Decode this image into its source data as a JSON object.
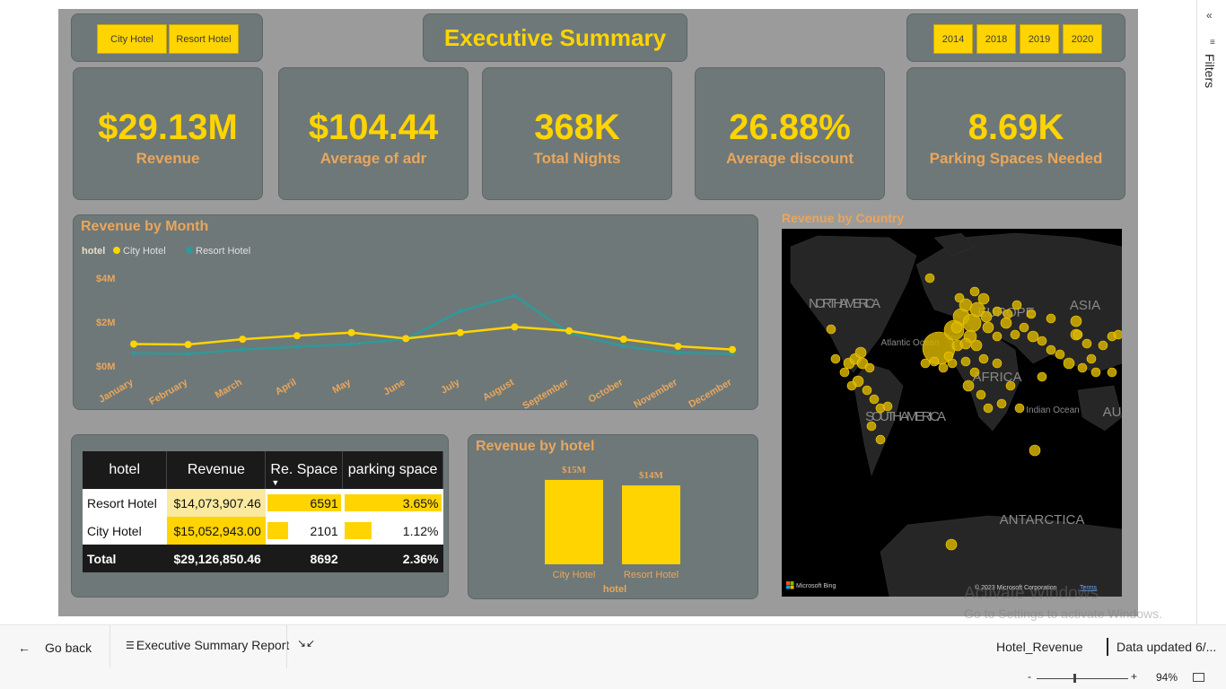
{
  "hotel_slicer": [
    "City Hotel",
    "Resort Hotel"
  ],
  "report_title": "Executive Summary",
  "year_slicer": [
    "2014",
    "2018",
    "2019",
    "2020"
  ],
  "kpis": [
    {
      "value": "$29.13M",
      "label": "Revenue"
    },
    {
      "value": "$104.44",
      "label": "Average of adr"
    },
    {
      "value": "368K",
      "label": "Total Nights"
    },
    {
      "value": "26.88%",
      "label": "Average discount"
    },
    {
      "value": "8.69K",
      "label": "Parking Spaces Needed"
    }
  ],
  "line_chart": {
    "title": "Revenue by Month",
    "legend_title": "hotel",
    "chart_data": {
      "type": "line",
      "title": "Revenue by Month",
      "categories": [
        "January",
        "February",
        "March",
        "April",
        "May",
        "June",
        "July",
        "August",
        "September",
        "October",
        "November",
        "December"
      ],
      "y_ticks": [
        "$0M",
        "$2M",
        "$4M"
      ],
      "ylim": [
        0,
        4
      ],
      "series": [
        {
          "name": "City Hotel",
          "color": "#ffd400",
          "values": [
            1.0,
            0.98,
            1.22,
            1.38,
            1.52,
            1.25,
            1.52,
            1.78,
            1.6,
            1.22,
            0.9,
            0.75
          ]
        },
        {
          "name": "Resort Hotel",
          "color": "#2e9a9a",
          "values": [
            0.58,
            0.55,
            0.75,
            0.88,
            1.0,
            1.22,
            2.5,
            3.2,
            1.5,
            0.9,
            0.6,
            0.55
          ]
        }
      ]
    }
  },
  "map": {
    "title": "Revenue by Country",
    "labels": [
      "NORTH AMERICA",
      "EUROPE",
      "ASIA",
      "SOUTH AMERICA",
      "AFRICA",
      "ANTARCTICA",
      "Atlantic Ocean",
      "Indian Ocean",
      "AU"
    ],
    "credit": "Microsoft Bing",
    "copyright": "© 2023 Microsoft Corporation",
    "terms": "Terms"
  },
  "table": {
    "headers": [
      "hotel",
      "Revenue",
      "Re. Space",
      "parking space"
    ],
    "rows": [
      {
        "hotel": "Resort Hotel",
        "revenue": "$14,073,907.46",
        "space": "6591",
        "space_pct": 1.0,
        "parking": "3.65%",
        "parking_pct": 1.0
      },
      {
        "hotel": "City Hotel",
        "revenue": "$15,052,943.00",
        "space": "2101",
        "space_pct": 0.32,
        "parking": "1.12%",
        "parking_pct": 0.31
      }
    ],
    "total": {
      "hotel": "Total",
      "revenue": "$29,126,850.46",
      "space": "8692",
      "parking": "2.36%"
    }
  },
  "bar_chart": {
    "title": "Revenue by hotel",
    "xlabel": "hotel",
    "chart_data": {
      "type": "bar",
      "title": "Revenue by hotel",
      "xlabel": "hotel",
      "categories": [
        "City Hotel",
        "Resort Hotel"
      ],
      "values": [
        15.05,
        14.07
      ],
      "data_labels": [
        "$15M",
        "$14M"
      ],
      "ylim": [
        0,
        16
      ]
    }
  },
  "filters_label": "Filters",
  "status": {
    "go_back": "Go back",
    "page_name": "Executive Summary Report",
    "dataset": "Hotel_Revenue",
    "updated": "Data updated 6/...",
    "zoom": "94%",
    "zoom_fraction": 0.4,
    "watermark_title": "Activate Windows",
    "watermark_sub": "Go to Settings to activate Windows."
  },
  "colors": {
    "accent": "#ffd400",
    "label": "#e9a65d",
    "card": "#6e7878",
    "canvas": "#9b9b9b",
    "resort": "#2e9a9a"
  }
}
